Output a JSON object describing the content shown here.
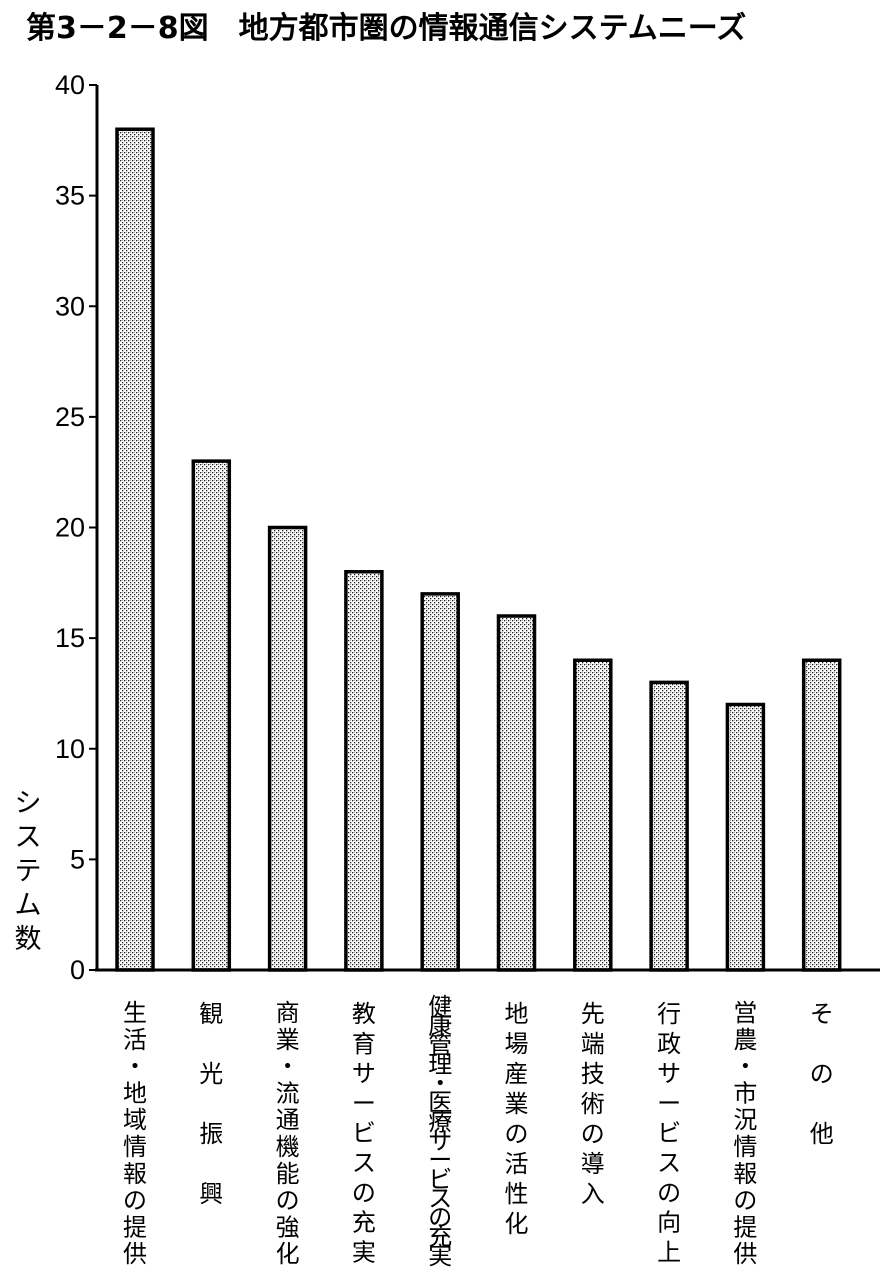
{
  "chart_data": {
    "type": "bar",
    "title": "第3－2－8図　地方都市圏の情報通信システムニーズ",
    "ylabel": "システム数",
    "xlabel": "",
    "ylim": [
      0,
      40
    ],
    "yticks": [
      0,
      5,
      10,
      15,
      20,
      25,
      30,
      35,
      40
    ],
    "ytick_labels": [
      "0",
      "5",
      "10",
      "15",
      "20",
      "25",
      "30",
      "35",
      "40"
    ],
    "categories": [
      "生活・地域情報の提供",
      "観　光　振　興",
      "商業・流通機能の強化",
      "教育サービスの充実",
      "健康管理・医療サービスの充実",
      "地場産業の活性化",
      "先端技術の導入",
      "行政サービスの向上",
      "営農・市況情報の提供",
      "そ　の　他"
    ],
    "values": [
      38,
      23,
      20,
      18,
      17,
      16,
      14,
      13,
      12,
      14
    ],
    "grid": false,
    "legend": "none",
    "bar_pattern": "stippled gray",
    "colors": {
      "bar_fill": "#c8c8c8",
      "bar_stroke": "#000000",
      "axis": "#000000"
    }
  }
}
